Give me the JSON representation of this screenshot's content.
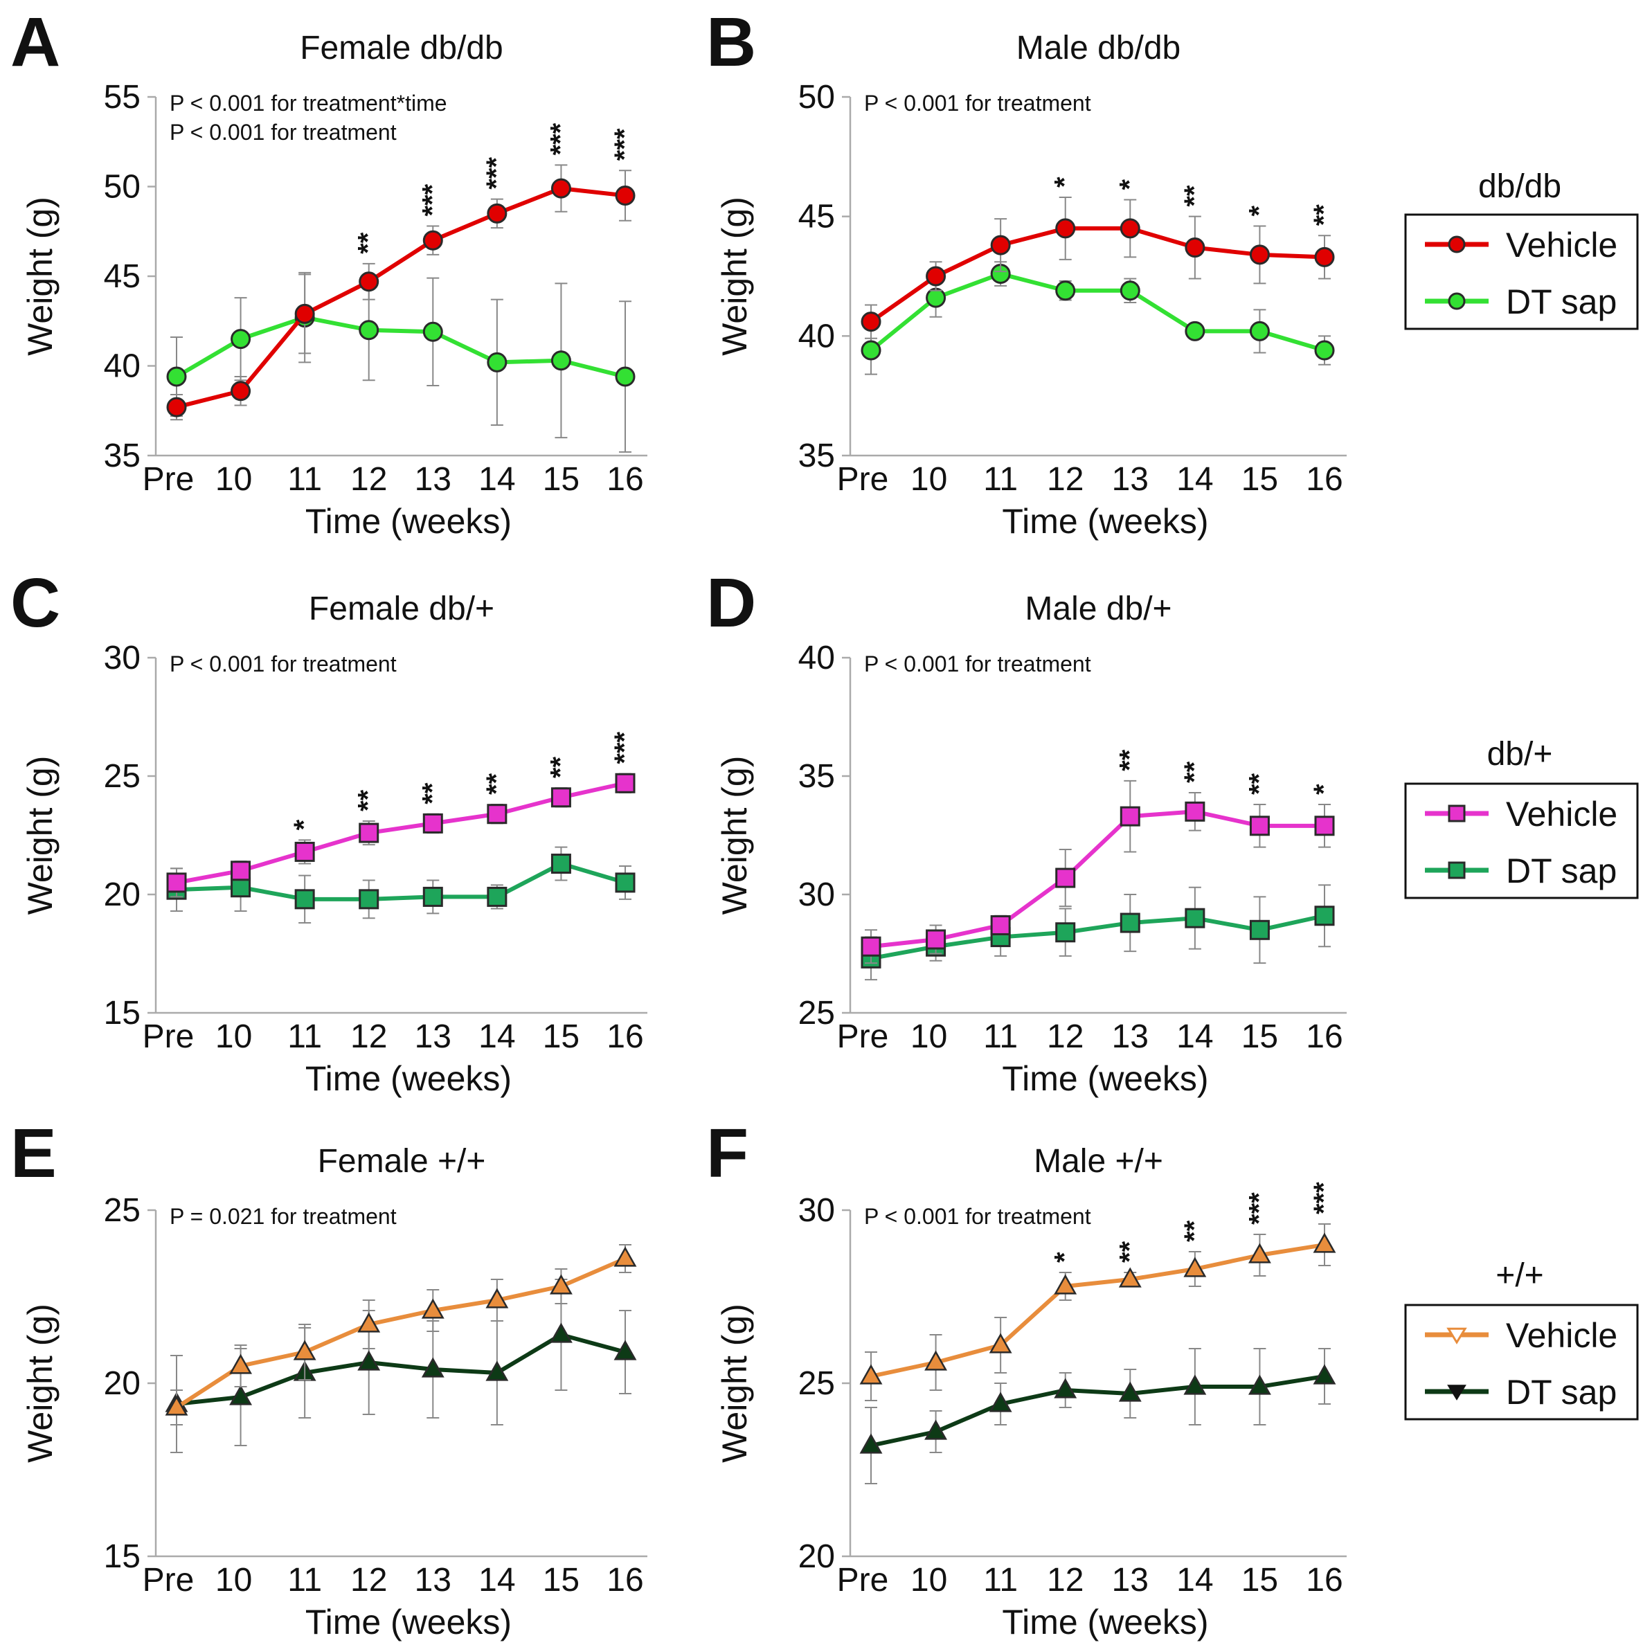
{
  "charts": [
    {
      "id": "A",
      "panel_letter": "A",
      "title": "Female db/db",
      "ylabel": "Weight (g)",
      "xlabel": "Time (weeks)",
      "annotations": [
        "P < 0.001 for treatment*time",
        "P < 0.001 for treatment"
      ],
      "ylim": [
        35,
        55
      ],
      "yticks": [
        35,
        40,
        45,
        50,
        55
      ],
      "categories": [
        "Pre",
        "10",
        "11",
        "12",
        "13",
        "14",
        "15",
        "16"
      ],
      "marker": "circle",
      "series": [
        {
          "name": "DT sap",
          "color": "#33e033",
          "values": [
            39.4,
            41.5,
            42.7,
            42.0,
            41.9,
            40.2,
            40.3,
            39.4
          ],
          "err": [
            2.2,
            2.3,
            2.5,
            2.8,
            3.0,
            3.5,
            4.3,
            4.2
          ]
        },
        {
          "name": "Vehicle",
          "color": "#e00000",
          "values": [
            37.7,
            38.6,
            42.9,
            44.7,
            47.0,
            48.5,
            49.9,
            49.5
          ],
          "err": [
            0.7,
            0.8,
            2.2,
            1.0,
            0.8,
            0.8,
            1.3,
            1.4
          ]
        }
      ],
      "stars": [
        "",
        "",
        "",
        "**",
        "***",
        "***",
        "***",
        "***"
      ]
    },
    {
      "id": "B",
      "panel_letter": "B",
      "title": "Male db/db",
      "ylabel": "Weight (g)",
      "xlabel": "Time (weeks)",
      "annotations": [
        "P < 0.001 for treatment"
      ],
      "ylim": [
        35,
        50
      ],
      "yticks": [
        35,
        40,
        45,
        50
      ],
      "categories": [
        "Pre",
        "10",
        "11",
        "12",
        "13",
        "14",
        "15",
        "16"
      ],
      "marker": "circle",
      "series": [
        {
          "name": "DT sap",
          "color": "#33e033",
          "values": [
            39.4,
            41.6,
            42.6,
            41.9,
            41.9,
            40.2,
            40.2,
            39.4
          ],
          "err": [
            1.0,
            0.8,
            0.5,
            0.4,
            0.5,
            0.3,
            0.9,
            0.6
          ]
        },
        {
          "name": "Vehicle",
          "color": "#e00000",
          "values": [
            40.6,
            42.5,
            43.8,
            44.5,
            44.5,
            43.7,
            43.4,
            43.3
          ],
          "err": [
            0.7,
            0.6,
            1.1,
            1.3,
            1.2,
            1.3,
            1.2,
            0.9
          ]
        }
      ],
      "stars": [
        "",
        "",
        "",
        "*",
        "*",
        "**",
        "*",
        "**"
      ]
    },
    {
      "id": "C",
      "panel_letter": "C",
      "title": "Female db/+",
      "ylabel": "Weight (g)",
      "xlabel": "Time (weeks)",
      "annotations": [
        "P < 0.001 for treatment"
      ],
      "ylim": [
        15,
        30
      ],
      "yticks": [
        15,
        20,
        25,
        30
      ],
      "categories": [
        "Pre",
        "10",
        "11",
        "12",
        "13",
        "14",
        "15",
        "16"
      ],
      "marker": "square",
      "series": [
        {
          "name": "DT sap",
          "color": "#1ea55a",
          "values": [
            20.2,
            20.3,
            19.8,
            19.8,
            19.9,
            19.9,
            21.3,
            20.5
          ],
          "err": [
            0.9,
            1.0,
            1.0,
            0.8,
            0.7,
            0.5,
            0.7,
            0.7
          ]
        },
        {
          "name": "Vehicle",
          "color": "#e633cc",
          "values": [
            20.5,
            21.0,
            21.8,
            22.6,
            23.0,
            23.4,
            24.1,
            24.7
          ],
          "err": [
            0.6,
            0.4,
            0.5,
            0.5,
            0.4,
            0.4,
            0.4,
            0.4
          ]
        }
      ],
      "stars": [
        "",
        "",
        "*",
        "**",
        "**",
        "**",
        "**",
        "***"
      ]
    },
    {
      "id": "D",
      "panel_letter": "D",
      "title": "Male db/+",
      "ylabel": "Weight (g)",
      "xlabel": "Time (weeks)",
      "annotations": [
        "P < 0.001 for treatment"
      ],
      "ylim": [
        25,
        40
      ],
      "yticks": [
        25,
        30,
        35,
        40
      ],
      "categories": [
        "Pre",
        "10",
        "11",
        "12",
        "13",
        "14",
        "15",
        "16"
      ],
      "marker": "square",
      "series": [
        {
          "name": "DT sap",
          "color": "#1ea55a",
          "values": [
            27.3,
            27.8,
            28.2,
            28.4,
            28.8,
            29.0,
            28.5,
            29.1
          ],
          "err": [
            0.9,
            0.6,
            0.8,
            1.0,
            1.2,
            1.3,
            1.4,
            1.3
          ]
        },
        {
          "name": "Vehicle",
          "color": "#e633cc",
          "values": [
            27.8,
            28.1,
            28.7,
            30.7,
            33.3,
            33.5,
            32.9,
            32.9
          ],
          "err": [
            0.7,
            0.6,
            0.4,
            1.2,
            1.5,
            0.8,
            0.9,
            0.9
          ]
        }
      ],
      "stars": [
        "",
        "",
        "",
        "",
        "**",
        "**",
        "**",
        "*"
      ]
    },
    {
      "id": "E",
      "panel_letter": "E",
      "title": "Female +/+",
      "ylabel": "Weight (g)",
      "xlabel": "Time (weeks)",
      "annotations": [
        "P = 0.021 for treatment"
      ],
      "ylim": [
        15,
        25
      ],
      "yticks": [
        15,
        20,
        25
      ],
      "categories": [
        "Pre",
        "10",
        "11",
        "12",
        "13",
        "14",
        "15",
        "16"
      ],
      "marker": "triangle",
      "series": [
        {
          "name": "DT sap",
          "color": "#0d3a16",
          "values": [
            19.4,
            19.6,
            20.3,
            20.6,
            20.4,
            20.3,
            21.4,
            20.9
          ],
          "err": [
            1.4,
            1.4,
            1.3,
            1.5,
            1.4,
            1.5,
            1.6,
            1.2
          ]
        },
        {
          "name": "Vehicle",
          "color": "#e88d3c",
          "values": [
            19.3,
            20.5,
            20.9,
            21.7,
            22.1,
            22.4,
            22.8,
            23.6
          ],
          "err": [
            0.5,
            0.6,
            0.8,
            0.7,
            0.6,
            0.6,
            0.5,
            0.4
          ]
        }
      ],
      "stars": [
        "",
        "",
        "",
        "",
        "",
        "",
        "",
        ""
      ]
    },
    {
      "id": "F",
      "panel_letter": "F",
      "title": "Male +/+",
      "ylabel": "Weight (g)",
      "xlabel": "Time (weeks)",
      "annotations": [
        "P < 0.001 for treatment"
      ],
      "ylim": [
        20,
        30
      ],
      "yticks": [
        20,
        25,
        30
      ],
      "categories": [
        "Pre",
        "10",
        "11",
        "12",
        "13",
        "14",
        "15",
        "16"
      ],
      "marker": "triangle",
      "series": [
        {
          "name": "DT sap",
          "color": "#0d3a16",
          "values": [
            23.2,
            23.6,
            24.4,
            24.8,
            24.7,
            24.9,
            24.9,
            25.2
          ],
          "err": [
            1.1,
            0.6,
            0.6,
            0.5,
            0.7,
            1.1,
            1.1,
            0.8
          ]
        },
        {
          "name": "Vehicle",
          "color": "#e88d3c",
          "values": [
            25.2,
            25.6,
            26.1,
            27.8,
            28.0,
            28.3,
            28.7,
            29.0
          ],
          "err": [
            0.7,
            0.8,
            0.8,
            0.4,
            0.2,
            0.5,
            0.6,
            0.6
          ]
        }
      ],
      "stars": [
        "",
        "",
        "",
        "*",
        "**",
        "**",
        "***",
        "***"
      ]
    }
  ],
  "legends": [
    {
      "id": "L1",
      "title": "db/db",
      "marker": "circle",
      "entries": [
        {
          "label": "Vehicle",
          "color": "#e00000"
        },
        {
          "label": "DT sap",
          "color": "#33e033"
        }
      ]
    },
    {
      "id": "L2",
      "title": "db/+",
      "marker": "square",
      "entries": [
        {
          "label": "Vehicle",
          "color": "#e633cc"
        },
        {
          "label": "DT sap",
          "color": "#1ea55a"
        }
      ]
    },
    {
      "id": "L3",
      "title": "+/+",
      "marker": "triangle",
      "entries": [
        {
          "label": "Vehicle",
          "color": "#e88d3c",
          "shape": "triangle-down-open"
        },
        {
          "label": "DT sap",
          "color": "#0d3a16",
          "shape": "triangle-down-filled"
        }
      ]
    }
  ]
}
